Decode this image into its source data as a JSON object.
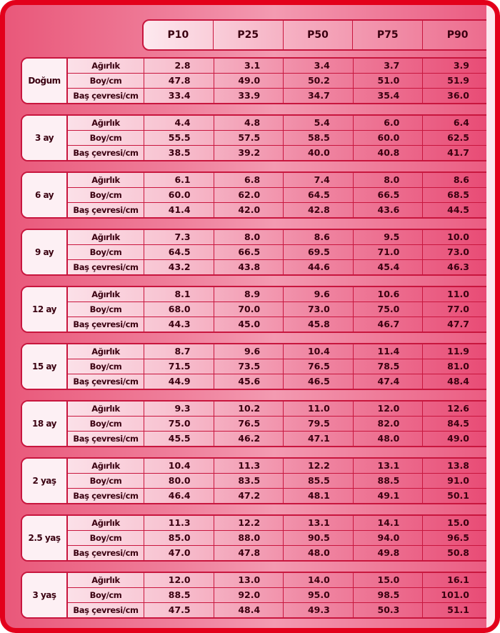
{
  "columns": [
    "P10",
    "P25",
    "P50",
    "P75",
    "P90"
  ],
  "measures": [
    "Ağırlık",
    "Boy/cm",
    "Baş çevresi/cm"
  ],
  "groups": [
    {
      "age": "Doğum",
      "rows": [
        [
          "2.8",
          "3.1",
          "3.4",
          "3.7",
          "3.9"
        ],
        [
          "47.8",
          "49.0",
          "50.2",
          "51.0",
          "51.9"
        ],
        [
          "33.4",
          "33.9",
          "34.7",
          "35.4",
          "36.0"
        ]
      ]
    },
    {
      "age": "3 ay",
      "rows": [
        [
          "4.4",
          "4.8",
          "5.4",
          "6.0",
          "6.4"
        ],
        [
          "55.5",
          "57.5",
          "58.5",
          "60.0",
          "62.5"
        ],
        [
          "38.5",
          "39.2",
          "40.0",
          "40.8",
          "41.7"
        ]
      ]
    },
    {
      "age": "6 ay",
      "rows": [
        [
          "6.1",
          "6.8",
          "7.4",
          "8.0",
          "8.6"
        ],
        [
          "60.0",
          "62.0",
          "64.5",
          "66.5",
          "68.5"
        ],
        [
          "41.4",
          "42.0",
          "42.8",
          "43.6",
          "44.5"
        ]
      ]
    },
    {
      "age": "9 ay",
      "rows": [
        [
          "7.3",
          "8.0",
          "8.6",
          "9.5",
          "10.0"
        ],
        [
          "64.5",
          "66.5",
          "69.5",
          "71.0",
          "73.0"
        ],
        [
          "43.2",
          "43.8",
          "44.6",
          "45.4",
          "46.3"
        ]
      ]
    },
    {
      "age": "12 ay",
      "rows": [
        [
          "8.1",
          "8.9",
          "9.6",
          "10.6",
          "11.0"
        ],
        [
          "68.0",
          "70.0",
          "73.0",
          "75.0",
          "77.0"
        ],
        [
          "44.3",
          "45.0",
          "45.8",
          "46.7",
          "47.7"
        ]
      ]
    },
    {
      "age": "15 ay",
      "rows": [
        [
          "8.7",
          "9.6",
          "10.4",
          "11.4",
          "11.9"
        ],
        [
          "71.5",
          "73.5",
          "76.5",
          "78.5",
          "81.0"
        ],
        [
          "44.9",
          "45.6",
          "46.5",
          "47.4",
          "48.4"
        ]
      ]
    },
    {
      "age": "18 ay",
      "rows": [
        [
          "9.3",
          "10.2",
          "11.0",
          "12.0",
          "12.6"
        ],
        [
          "75.0",
          "76.5",
          "79.5",
          "82.0",
          "84.5"
        ],
        [
          "45.5",
          "46.2",
          "47.1",
          "48.0",
          "49.0"
        ]
      ]
    },
    {
      "age": "2 yaş",
      "rows": [
        [
          "10.4",
          "11.3",
          "12.2",
          "13.1",
          "13.8"
        ],
        [
          "80.0",
          "83.5",
          "85.5",
          "88.5",
          "91.0"
        ],
        [
          "46.4",
          "47.2",
          "48.1",
          "49.1",
          "50.1"
        ]
      ]
    },
    {
      "age": "2.5 yaş",
      "rows": [
        [
          "11.3",
          "12.2",
          "13.1",
          "14.1",
          "15.0"
        ],
        [
          "85.0",
          "88.0",
          "90.5",
          "94.0",
          "96.5"
        ],
        [
          "47.0",
          "47.8",
          "48.0",
          "49.8",
          "50.8"
        ]
      ]
    },
    {
      "age": "3 yaş",
      "rows": [
        [
          "12.0",
          "13.0",
          "14.0",
          "15.0",
          "16.1"
        ],
        [
          "88.5",
          "92.0",
          "95.0",
          "98.5",
          "101.0"
        ],
        [
          "47.5",
          "48.4",
          "49.3",
          "50.3",
          "51.1"
        ]
      ]
    }
  ],
  "colors": {
    "border": "#e3001b",
    "grid": "#c8163e",
    "text": "#3a0010"
  }
}
